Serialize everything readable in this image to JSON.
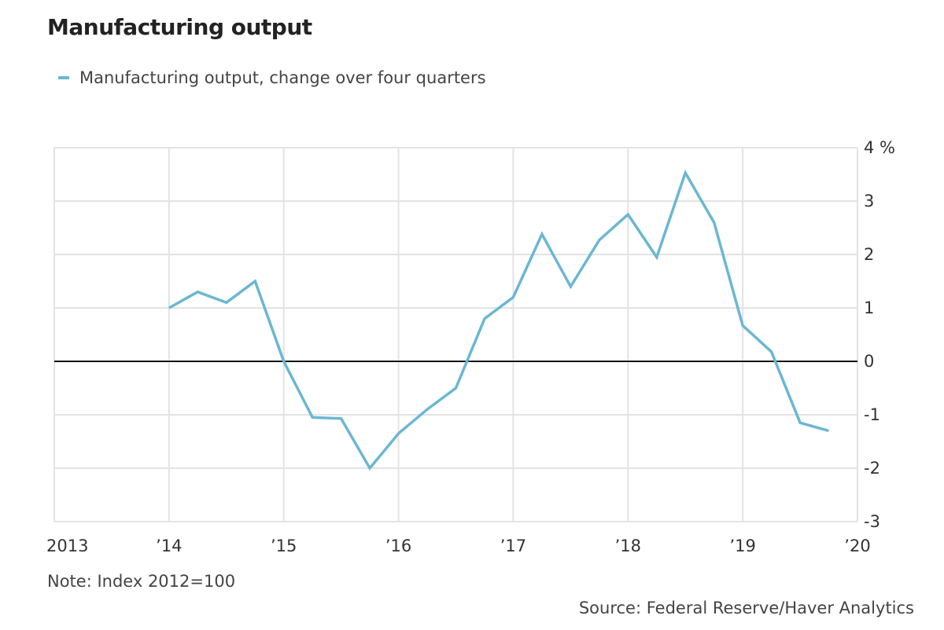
{
  "title": "Manufacturing output",
  "legend": {
    "label": "Manufacturing output, change over four quarters"
  },
  "note": "Note: Index 2012=100",
  "source": "Source: Federal Reserve/Haver Analytics",
  "colors": {
    "series": "#6bb7d3",
    "grid": "#e3e3e3",
    "zero_line": "#111111",
    "text": "#333333"
  },
  "chart_data": {
    "type": "line",
    "title": "Manufacturing output",
    "xlabel": "",
    "ylabel": "",
    "xlim": [
      2013,
      2020
    ],
    "ylim": [
      -3,
      4
    ],
    "grid": true,
    "legend_position": "top-left",
    "x_ticks": [
      {
        "value": 2013,
        "label": "2013"
      },
      {
        "value": 2014,
        "label": "’14"
      },
      {
        "value": 2015,
        "label": "’15"
      },
      {
        "value": 2016,
        "label": "’16"
      },
      {
        "value": 2017,
        "label": "’17"
      },
      {
        "value": 2018,
        "label": "’18"
      },
      {
        "value": 2019,
        "label": "’19"
      },
      {
        "value": 2020,
        "label": "’20"
      }
    ],
    "y_ticks": [
      {
        "value": 4,
        "label": "4 %"
      },
      {
        "value": 3,
        "label": "3"
      },
      {
        "value": 2,
        "label": "2"
      },
      {
        "value": 1,
        "label": "1"
      },
      {
        "value": 0,
        "label": "0"
      },
      {
        "value": -1,
        "label": "-1"
      },
      {
        "value": -2,
        "label": "-2"
      },
      {
        "value": -3,
        "label": "-3"
      }
    ],
    "series": [
      {
        "name": "Manufacturing output, change over four quarters",
        "x": [
          2014.0,
          2014.25,
          2014.5,
          2014.75,
          2015.0,
          2015.25,
          2015.5,
          2015.75,
          2016.0,
          2016.25,
          2016.5,
          2016.75,
          2017.0,
          2017.25,
          2017.5,
          2017.75,
          2018.0,
          2018.25,
          2018.5,
          2018.75,
          2019.0,
          2019.25,
          2019.5,
          2019.75
        ],
        "values": [
          1.0,
          1.3,
          1.1,
          1.5,
          0.0,
          -1.05,
          -1.07,
          -2.0,
          -1.35,
          -0.9,
          -0.5,
          0.8,
          1.2,
          2.38,
          1.4,
          2.27,
          2.75,
          1.95,
          3.53,
          2.6,
          0.67,
          0.18,
          -1.15,
          -1.3
        ]
      }
    ]
  }
}
